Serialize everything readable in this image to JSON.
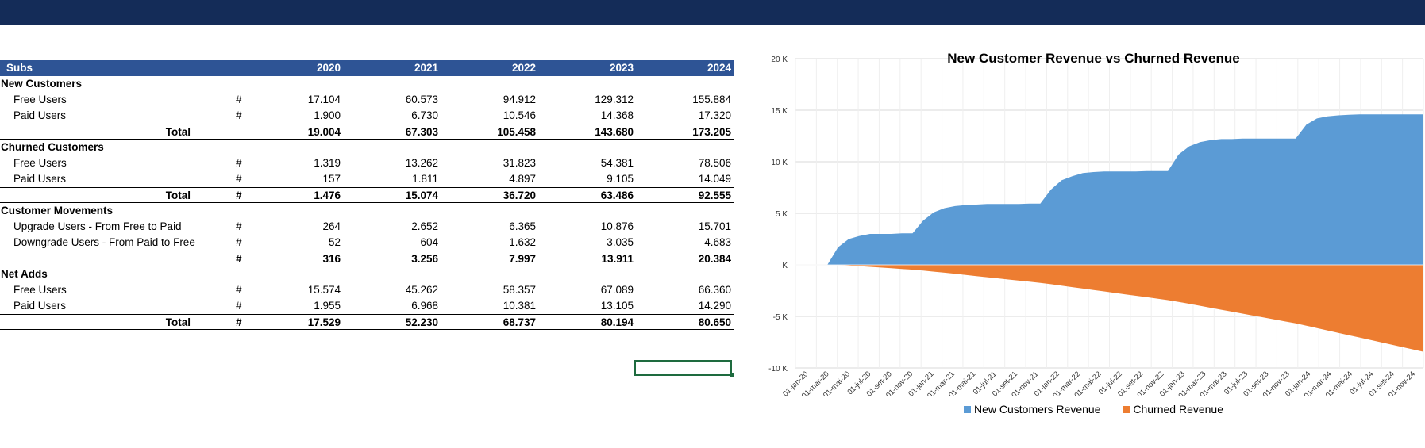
{
  "table": {
    "header": {
      "label": "Subs",
      "years": [
        "2020",
        "2021",
        "2022",
        "2023",
        "2024"
      ]
    },
    "sections": [
      {
        "title": "New Customers",
        "rows": [
          {
            "label": "Free Users",
            "unit": "#",
            "values": [
              "17.104",
              "60.573",
              "94.912",
              "129.312",
              "155.884"
            ]
          },
          {
            "label": "Paid Users",
            "unit": "#",
            "values": [
              "1.900",
              "6.730",
              "10.546",
              "14.368",
              "17.320"
            ]
          }
        ],
        "total": {
          "label": "Total",
          "unit": "",
          "values": [
            "19.004",
            "67.303",
            "105.458",
            "143.680",
            "173.205"
          ]
        }
      },
      {
        "title": "Churned Customers",
        "rows": [
          {
            "label": "Free Users",
            "unit": "#",
            "values": [
              "1.319",
              "13.262",
              "31.823",
              "54.381",
              "78.506"
            ]
          },
          {
            "label": "Paid Users",
            "unit": "#",
            "values": [
              "157",
              "1.811",
              "4.897",
              "9.105",
              "14.049"
            ]
          }
        ],
        "total": {
          "label": "Total",
          "unit": "#",
          "values": [
            "1.476",
            "15.074",
            "36.720",
            "63.486",
            "92.555"
          ]
        }
      },
      {
        "title": "Customer Movements",
        "rows": [
          {
            "label": "Upgrade Users - From Free to Paid",
            "unit": "#",
            "values": [
              "264",
              "2.652",
              "6.365",
              "10.876",
              "15.701"
            ]
          },
          {
            "label": "Downgrade Users - From Paid to Free",
            "unit": "#",
            "values": [
              "52",
              "604",
              "1.632",
              "3.035",
              "4.683"
            ]
          }
        ],
        "total": {
          "label": "",
          "unit": "#",
          "values": [
            "316",
            "3.256",
            "7.997",
            "13.911",
            "20.384"
          ]
        }
      },
      {
        "title": "Net Adds",
        "rows": [
          {
            "label": "Free Users",
            "unit": "#",
            "values": [
              "15.574",
              "45.262",
              "58.357",
              "67.089",
              "66.360"
            ]
          },
          {
            "label": "Paid Users",
            "unit": "#",
            "values": [
              "1.955",
              "6.968",
              "10.381",
              "13.105",
              "14.290"
            ]
          }
        ],
        "total": {
          "label": "Total",
          "unit": "#",
          "values": [
            "17.529",
            "52.230",
            "68.737",
            "80.194",
            "80.650"
          ]
        }
      }
    ]
  },
  "chart_data": {
    "type": "area",
    "title": "New Customer Revenue vs Churned Revenue",
    "x_tick_labels": [
      "01-jan-20",
      "01-mar-20",
      "01-mai-20",
      "01-jul-20",
      "01-set-20",
      "01-nov-20",
      "01-jan-21",
      "01-mar-21",
      "01-mai-21",
      "01-jul-21",
      "01-set-21",
      "01-nov-21",
      "01-jan-22",
      "01-mar-22",
      "01-mai-22",
      "01-jul-22",
      "01-set-22",
      "01-nov-22",
      "01-jan-23",
      "01-mar-23",
      "01-mai-23",
      "01-jul-23",
      "01-set-23",
      "01-nov-23",
      "01-jan-24",
      "01-mar-24",
      "01-mai-24",
      "01-jul-24",
      "01-set-24",
      "01-nov-24"
    ],
    "y_tick_labels": [
      "20 K",
      "15 K",
      "10 K",
      "5 K",
      "K",
      "-5 K",
      "-10 K"
    ],
    "ylim": [
      -10000,
      20000
    ],
    "grid": true,
    "legend_position": "bottom",
    "series": [
      {
        "name": "New Customers Revenue",
        "color": "#5b9bd5",
        "values": [
          0,
          0,
          0,
          0,
          1700,
          2500,
          2800,
          3000,
          3000,
          3000,
          3050,
          3050,
          4300,
          5100,
          5500,
          5700,
          5800,
          5850,
          5900,
          5900,
          5900,
          5900,
          5950,
          5950,
          7300,
          8200,
          8600,
          8900,
          9000,
          9050,
          9050,
          9050,
          9050,
          9100,
          9100,
          9100,
          10700,
          11500,
          11900,
          12100,
          12200,
          12200,
          12250,
          12250,
          12250,
          12250,
          12250,
          12250,
          13600,
          14200,
          14400,
          14500,
          14550,
          14600,
          14600,
          14600,
          14600,
          14600,
          14600,
          14600
        ]
      },
      {
        "name": "Churned Revenue",
        "color": "#ed7d31",
        "values": [
          0,
          0,
          0,
          0,
          0,
          -60,
          -120,
          -190,
          -260,
          -330,
          -400,
          -470,
          -560,
          -660,
          -760,
          -870,
          -980,
          -1090,
          -1200,
          -1310,
          -1420,
          -1530,
          -1640,
          -1750,
          -1880,
          -2020,
          -2160,
          -2300,
          -2440,
          -2580,
          -2720,
          -2860,
          -3000,
          -3140,
          -3280,
          -3420,
          -3590,
          -3780,
          -3970,
          -4160,
          -4350,
          -4540,
          -4730,
          -4920,
          -5110,
          -5300,
          -5490,
          -5680,
          -5900,
          -6130,
          -6360,
          -6590,
          -6820,
          -7050,
          -7280,
          -7510,
          -7740,
          -7970,
          -8200,
          -8430
        ]
      }
    ]
  }
}
